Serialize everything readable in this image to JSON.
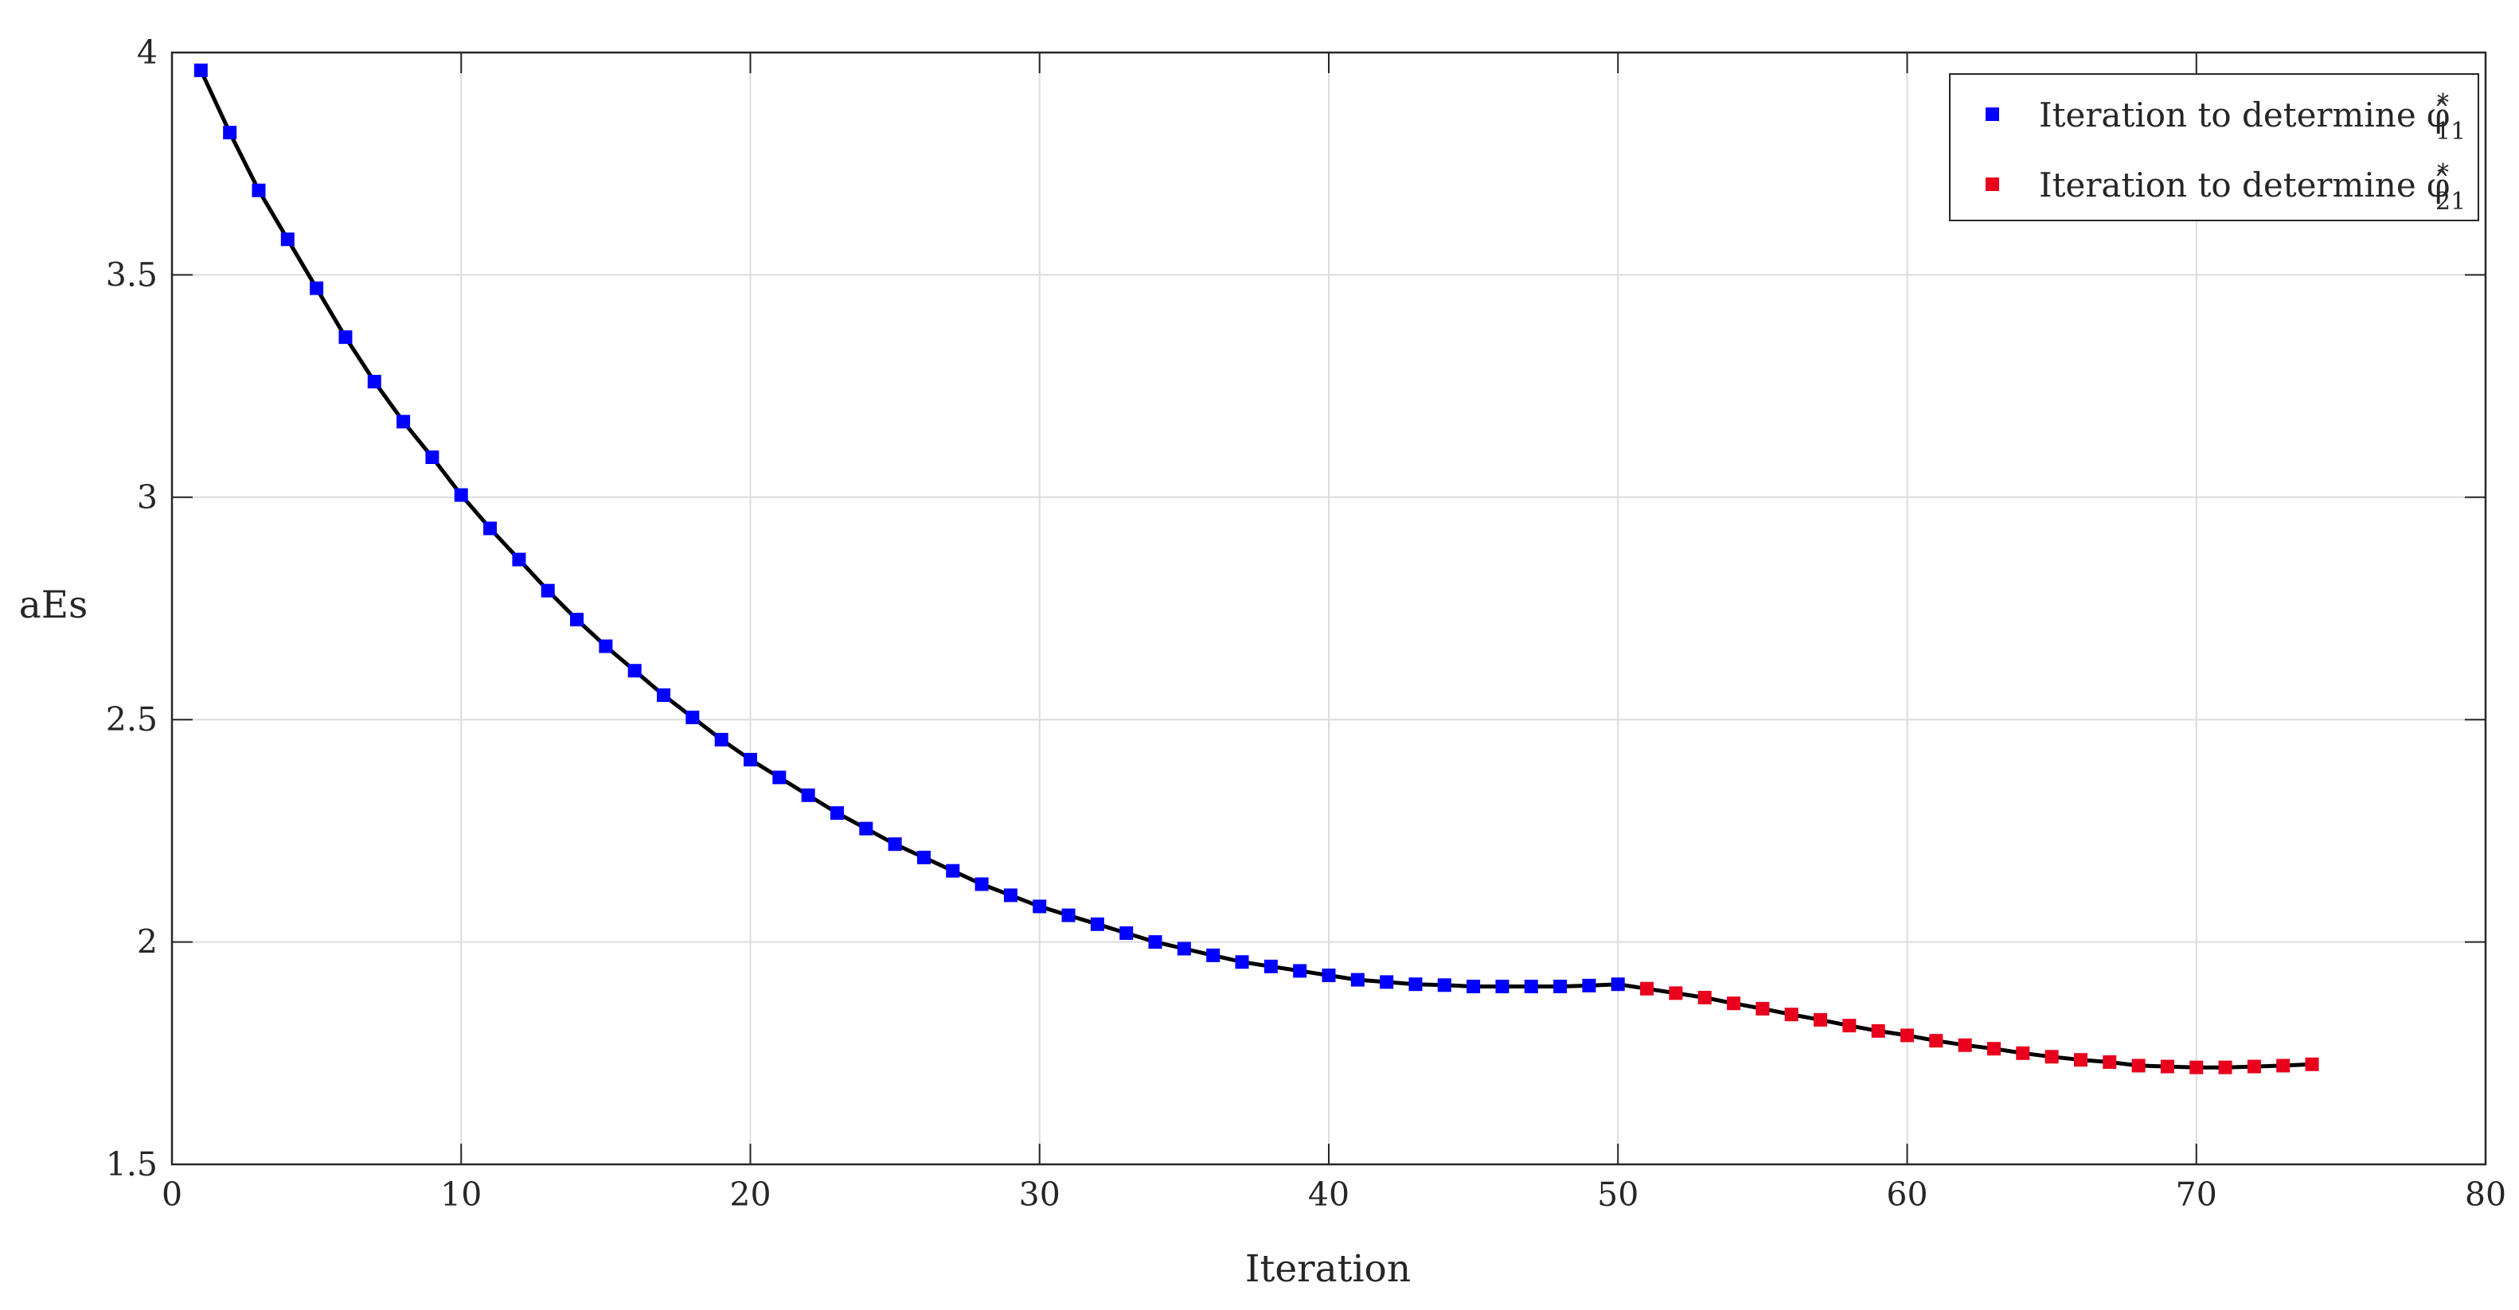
{
  "chart_data": {
    "type": "line",
    "title": "",
    "xlabel": "Iteration",
    "ylabel": "aEs",
    "xlim": [
      0,
      80
    ],
    "ylim": [
      1.5,
      4
    ],
    "xticks": [
      "0",
      "10",
      "20",
      "30",
      "40",
      "50",
      "60",
      "70",
      "80"
    ],
    "yticks": [
      "1.5",
      "2",
      "2.5",
      "3",
      "3.5",
      "4"
    ],
    "grid": true,
    "legend_position": "top-right",
    "line_color": "#000000",
    "series": [
      {
        "legend_text": "Iteration to determine ",
        "legend_symbol": "φ̂",
        "legend_sup": "*",
        "legend_sub": "11",
        "color": "#0000ff",
        "marker": "square",
        "x": [
          1,
          2,
          3,
          4,
          5,
          6,
          7,
          8,
          9,
          10,
          11,
          12,
          13,
          14,
          15,
          16,
          17,
          18,
          19,
          20,
          21,
          22,
          23,
          24,
          25,
          26,
          27,
          28,
          29,
          30,
          31,
          32,
          33,
          34,
          35,
          36,
          37,
          38,
          39,
          40,
          41,
          42,
          43,
          44,
          45,
          46,
          47,
          48,
          49,
          50
        ],
        "y": [
          3.96,
          3.82,
          3.69,
          3.58,
          3.47,
          3.36,
          3.26,
          3.17,
          3.09,
          3.005,
          2.93,
          2.86,
          2.79,
          2.725,
          2.665,
          2.61,
          2.555,
          2.505,
          2.455,
          2.41,
          2.37,
          2.33,
          2.29,
          2.255,
          2.22,
          2.19,
          2.16,
          2.13,
          2.105,
          2.08,
          2.06,
          2.04,
          2.02,
          2.0,
          1.985,
          1.97,
          1.955,
          1.945,
          1.935,
          1.925,
          1.915,
          1.91,
          1.905,
          1.903,
          1.9,
          1.9,
          1.9,
          1.9,
          1.902,
          1.905
        ]
      },
      {
        "legend_text": "Iteration to determine ",
        "legend_symbol": "φ̂",
        "legend_sup": "*",
        "legend_sub": "21",
        "color": "#e8001c",
        "marker": "square",
        "x": [
          51,
          52,
          53,
          54,
          55,
          56,
          57,
          58,
          59,
          60,
          61,
          62,
          63,
          64,
          65,
          66,
          67,
          68,
          69,
          70,
          71,
          72,
          73,
          74
        ],
        "y": [
          1.895,
          1.885,
          1.875,
          1.862,
          1.85,
          1.837,
          1.825,
          1.812,
          1.8,
          1.79,
          1.778,
          1.768,
          1.76,
          1.75,
          1.742,
          1.735,
          1.73,
          1.722,
          1.72,
          1.718,
          1.718,
          1.72,
          1.722,
          1.725
        ]
      }
    ]
  }
}
